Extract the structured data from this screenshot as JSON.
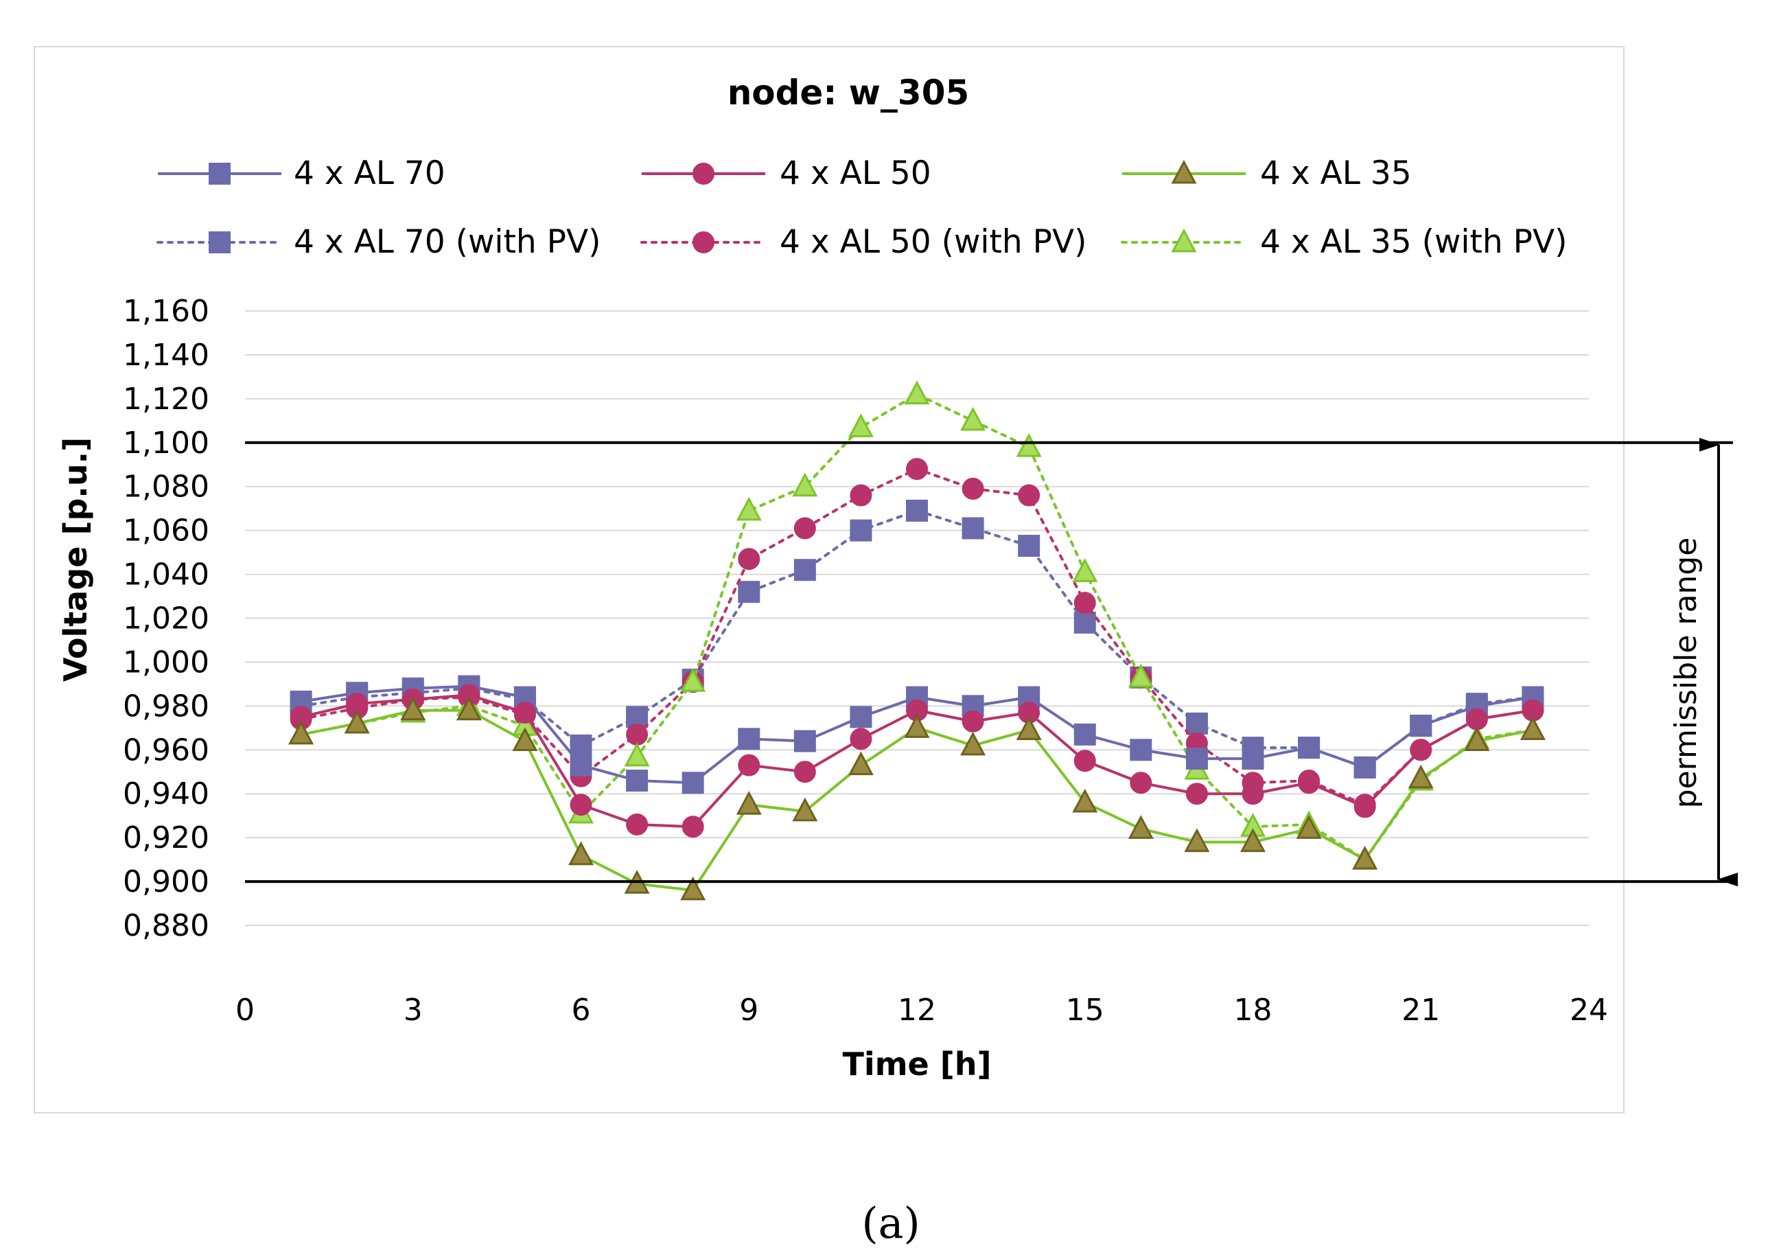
{
  "figure_label": "(a)",
  "colors": {
    "al70": "#6b6bab",
    "al50": "#b8336a",
    "al35": "#7cc52a",
    "al35_marker_fill": "#9a8a3f",
    "al35_marker_stroke": "#6e6220",
    "al35pv_marker_fill": "#a8dc5a",
    "grid": "#d9d9d9",
    "limit": "#000000"
  },
  "chart_data": {
    "type": "line",
    "title": "node: w_305",
    "xlabel": "Time [h]",
    "ylabel": "Voltage [p.u.]",
    "xlim": [
      0,
      24
    ],
    "ylim": [
      0.87,
      1.16
    ],
    "x_ticks": [
      0,
      3,
      6,
      9,
      12,
      15,
      18,
      21,
      24
    ],
    "y_ticks": [
      0.88,
      0.9,
      0.92,
      0.94,
      0.96,
      0.98,
      1.0,
      1.02,
      1.04,
      1.06,
      1.08,
      1.1,
      1.12,
      1.14,
      1.16
    ],
    "y_tick_labels": [
      "0,880",
      "0,900",
      "0,920",
      "0,940",
      "0,960",
      "0,980",
      "1,000",
      "1,020",
      "1,040",
      "1,060",
      "1,080",
      "1,100",
      "1,120",
      "1,140",
      "1,160"
    ],
    "limits": [
      0.9,
      1.1
    ],
    "range_label": "permissible range",
    "x": [
      1,
      2,
      3,
      4,
      5,
      6,
      7,
      8,
      9,
      10,
      11,
      12,
      13,
      14,
      15,
      16,
      17,
      18,
      19,
      20,
      21,
      22,
      23
    ],
    "series": [
      {
        "name": "4 x AL 70",
        "style": "solid",
        "marker": "square",
        "color_key": "al70",
        "values": [
          0.982,
          0.986,
          0.988,
          0.989,
          0.984,
          0.953,
          0.946,
          0.945,
          0.965,
          0.964,
          0.975,
          0.984,
          0.98,
          0.984,
          0.967,
          0.96,
          0.956,
          0.956,
          0.961,
          0.952,
          0.971,
          0.98,
          0.984
        ]
      },
      {
        "name": "4 x AL 50",
        "style": "solid",
        "marker": "circle",
        "color_key": "al50",
        "values": [
          0.975,
          0.981,
          0.983,
          0.985,
          0.977,
          0.935,
          0.926,
          0.925,
          0.953,
          0.95,
          0.965,
          0.978,
          0.973,
          0.977,
          0.955,
          0.945,
          0.94,
          0.94,
          0.945,
          0.934,
          0.96,
          0.974,
          0.978
        ]
      },
      {
        "name": "4 x AL 35",
        "style": "solid",
        "marker": "triangle",
        "color_key": "al35",
        "values": [
          0.967,
          0.972,
          0.978,
          0.978,
          0.964,
          0.912,
          0.899,
          0.896,
          0.935,
          0.932,
          0.953,
          0.97,
          0.962,
          0.969,
          0.936,
          0.924,
          0.918,
          0.918,
          0.924,
          0.91,
          0.947,
          0.964,
          0.969
        ]
      },
      {
        "name": "4 x AL 70 (with PV)",
        "style": "dotted",
        "marker": "square",
        "color_key": "al70",
        "values": [
          0.98,
          0.984,
          0.986,
          0.988,
          0.983,
          0.962,
          0.975,
          0.992,
          1.032,
          1.042,
          1.06,
          1.069,
          1.061,
          1.053,
          1.018,
          0.993,
          0.972,
          0.961,
          0.961,
          0.952,
          0.971,
          0.981,
          0.984
        ]
      },
      {
        "name": "4 x AL 50 (with PV)",
        "style": "dotted",
        "marker": "circle",
        "color_key": "al50",
        "values": [
          0.974,
          0.979,
          0.983,
          0.984,
          0.976,
          0.948,
          0.967,
          0.991,
          1.047,
          1.061,
          1.076,
          1.088,
          1.079,
          1.076,
          1.027,
          0.993,
          0.963,
          0.945,
          0.946,
          0.935,
          0.96,
          0.974,
          0.978
        ]
      },
      {
        "name": "4 x AL 35 (with PV)",
        "style": "dotted",
        "marker": "triangle",
        "color_key": "al35",
        "values": [
          0.967,
          0.972,
          0.977,
          0.98,
          0.971,
          0.931,
          0.957,
          0.991,
          1.069,
          1.08,
          1.107,
          1.122,
          1.11,
          1.098,
          1.041,
          0.993,
          0.951,
          0.925,
          0.926,
          0.91,
          0.946,
          0.965,
          0.969
        ]
      }
    ]
  }
}
